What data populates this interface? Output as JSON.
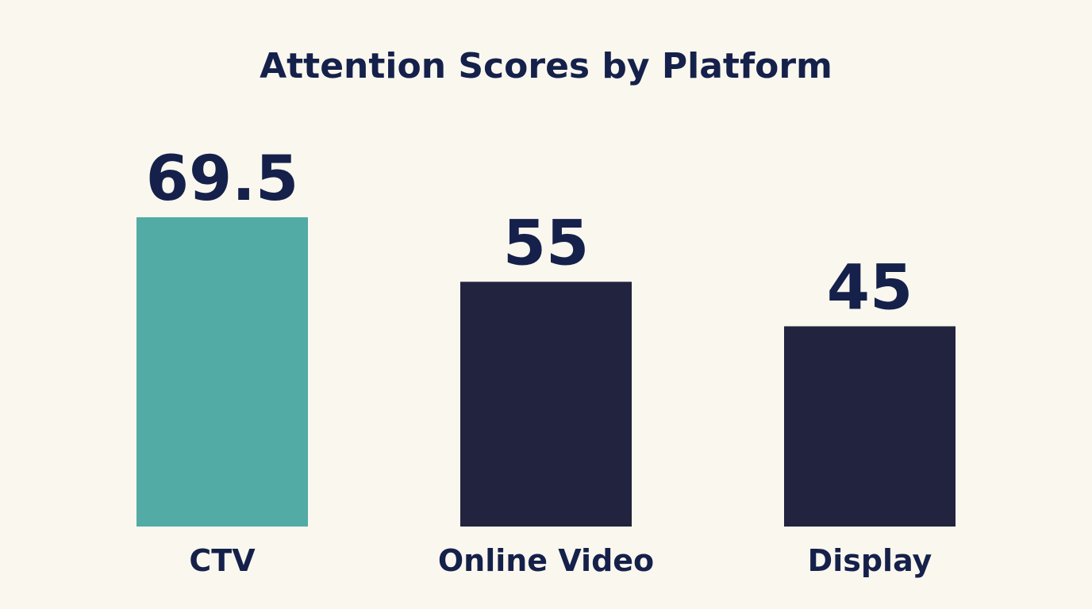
{
  "chart_data": {
    "type": "bar",
    "title": "Attention Scores by Platform",
    "xlabel": "",
    "ylabel": "",
    "categories": [
      "CTV",
      "Online Video",
      "Display"
    ],
    "values": [
      69.5,
      55,
      45
    ],
    "value_labels": [
      "69.5",
      "55",
      "45"
    ],
    "ylim": [
      0,
      69.5
    ],
    "grid": false,
    "colors": [
      "#52aba4",
      "#22233e",
      "#22233e"
    ],
    "background": "#faf7ef",
    "text_color": "#15214a"
  }
}
